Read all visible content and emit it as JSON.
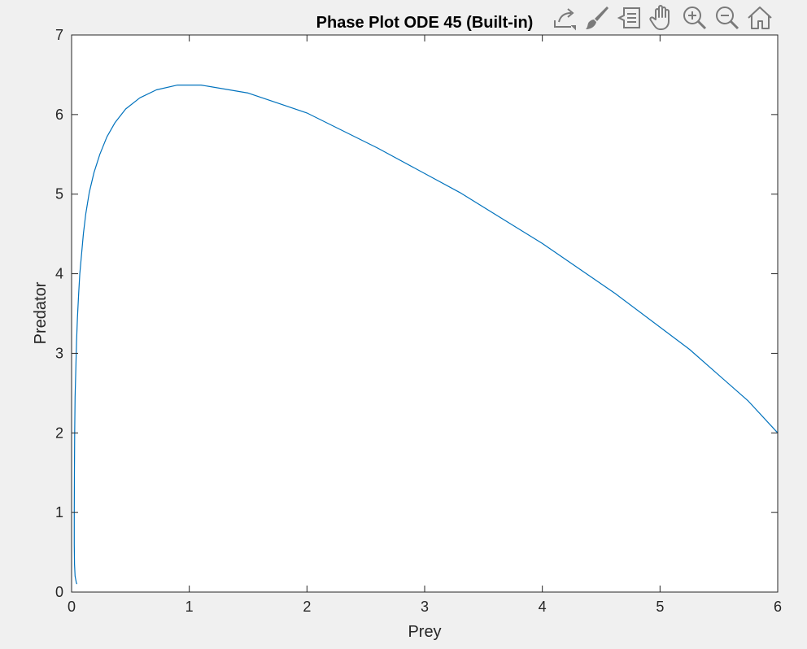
{
  "toolbar": {
    "icons": [
      "export-icon",
      "brush-icon",
      "data-tips-icon",
      "pan-hand-icon",
      "zoom-in-icon",
      "zoom-out-icon",
      "home-icon"
    ]
  },
  "colors": {
    "background": "#f0f0f0",
    "axes_background": "#ffffff",
    "line": "#0072bd",
    "axis": "#262626",
    "icon": "#7a7a7a"
  },
  "chart_data": {
    "type": "line",
    "title": "Phase Plot ODE 45 (Built-in)",
    "xlabel": "Prey",
    "ylabel": "Predator",
    "xlim": [
      0,
      6
    ],
    "ylim": [
      0,
      7
    ],
    "xticks": [
      "0",
      "1",
      "2",
      "3",
      "4",
      "5",
      "6"
    ],
    "yticks": [
      "0",
      "1",
      "2",
      "3",
      "4",
      "5",
      "6",
      "7"
    ],
    "grid": false,
    "series": [
      {
        "x": [
          6.0,
          5.75,
          5.25,
          4.62,
          4.0,
          3.3,
          2.6,
          2.0,
          1.5,
          1.1,
          0.9,
          0.72,
          0.58,
          0.46,
          0.37,
          0.3,
          0.24,
          0.19,
          0.15,
          0.12,
          0.1,
          0.085,
          0.07,
          0.06,
          0.05,
          0.042,
          0.036,
          0.03,
          0.026,
          0.024,
          0.023,
          0.023,
          0.025,
          0.03,
          0.04,
          0.045
        ],
        "y": [
          2.0,
          2.4,
          3.05,
          3.75,
          4.38,
          5.02,
          5.58,
          6.02,
          6.27,
          6.37,
          6.37,
          6.31,
          6.21,
          6.07,
          5.9,
          5.72,
          5.5,
          5.27,
          5.02,
          4.75,
          4.5,
          4.25,
          4.0,
          3.75,
          3.45,
          3.15,
          2.8,
          2.45,
          2.0,
          1.5,
          1.0,
          0.6,
          0.35,
          0.2,
          0.12,
          0.1
        ]
      }
    ]
  }
}
